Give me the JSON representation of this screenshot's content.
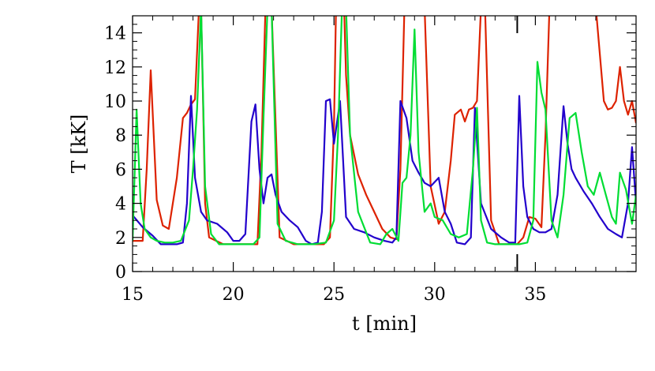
{
  "chart_data": {
    "type": "line",
    "xlabel": "t [min]",
    "ylabel": "T [kK]",
    "xlim": [
      15,
      40
    ],
    "ylim": [
      0,
      15
    ],
    "x_ticks": [
      15,
      20,
      25,
      30,
      35
    ],
    "y_ticks": [
      0,
      2,
      4,
      6,
      8,
      10,
      12,
      14
    ],
    "grid": false,
    "legend": "none",
    "marker_line_x": 34.1,
    "series": [
      {
        "color": "#dd2200",
        "x": [
          15,
          15.5,
          15.7,
          15.9,
          16.2,
          16.5,
          16.8,
          17.2,
          17.5,
          17.7,
          17.9,
          18.1,
          18.3,
          18.4,
          18.5,
          18.6,
          18.8,
          19.5,
          20.5,
          21.2,
          21.4,
          21.6,
          21.9,
          22.3,
          23.0,
          23.8,
          24.5,
          24.8,
          25.0,
          25.1,
          25.3,
          25.5,
          25.6,
          25.8,
          26.2,
          26.6,
          27.0,
          27.4,
          27.8,
          28.1,
          28.3,
          28.5,
          28.7,
          29.0,
          29.3,
          29.5,
          29.8,
          30.2,
          30.5,
          30.8,
          31.0,
          31.3,
          31.5,
          31.7,
          31.9,
          32.1,
          32.3,
          32.5,
          32.8,
          33.2,
          33.7,
          34.1,
          34.4,
          34.7,
          35.0,
          35.3,
          35.5,
          35.7,
          36.5,
          37.0,
          37.5,
          38.0,
          38.4,
          38.6,
          38.8,
          39.0,
          39.2,
          39.4,
          39.6,
          39.8,
          40.0
        ],
        "values": [
          1.8,
          1.8,
          6.0,
          11.8,
          4.2,
          2.7,
          2.5,
          5.5,
          9.0,
          9.3,
          9.8,
          10.1,
          15.5,
          15.5,
          10.0,
          4.0,
          2.0,
          1.6,
          1.6,
          1.6,
          7.0,
          15.5,
          15.5,
          2.0,
          1.6,
          1.6,
          1.6,
          2.0,
          8.5,
          15.5,
          15.5,
          15.5,
          11.5,
          8.0,
          5.7,
          4.5,
          3.5,
          2.5,
          2.0,
          1.9,
          6.0,
          15.5,
          15.5,
          15.5,
          15.5,
          15.5,
          5.0,
          2.8,
          3.5,
          6.5,
          9.2,
          9.5,
          8.8,
          9.5,
          9.6,
          10.0,
          15.5,
          15.5,
          3.0,
          1.6,
          1.6,
          1.6,
          2.0,
          3.2,
          3.1,
          2.6,
          8.0,
          15.5,
          15.5,
          15.5,
          15.5,
          15.5,
          10.0,
          9.5,
          9.6,
          10.0,
          12.0,
          10.0,
          9.2,
          10.0,
          8.7
        ]
      },
      {
        "color": "#2200cc",
        "x": [
          15,
          15.5,
          16.0,
          16.4,
          16.8,
          17.2,
          17.5,
          17.7,
          17.9,
          18.1,
          18.4,
          18.7,
          19.2,
          19.7,
          20.0,
          20.3,
          20.6,
          20.9,
          21.1,
          21.3,
          21.5,
          21.7,
          21.9,
          22.1,
          22.4,
          22.8,
          23.2,
          23.6,
          23.9,
          24.2,
          24.4,
          24.6,
          24.8,
          25.0,
          25.3,
          25.6,
          26.0,
          26.5,
          27.0,
          27.5,
          27.9,
          28.1,
          28.3,
          28.6,
          28.9,
          29.2,
          29.5,
          29.8,
          30.2,
          30.5,
          30.8,
          31.1,
          31.5,
          31.8,
          32.0,
          32.3,
          32.8,
          33.3,
          33.7,
          34.0,
          34.2,
          34.4,
          34.6,
          34.9,
          35.2,
          35.5,
          35.8,
          36.1,
          36.4,
          36.6,
          36.8,
          37.0,
          37.4,
          37.8,
          38.2,
          38.6,
          39.0,
          39.3,
          39.6,
          39.8,
          40.0
        ],
        "values": [
          3.3,
          2.6,
          2.1,
          1.6,
          1.6,
          1.6,
          1.7,
          4.0,
          10.3,
          5.5,
          3.5,
          3.0,
          2.8,
          2.3,
          1.8,
          1.8,
          2.2,
          8.8,
          9.8,
          6.0,
          4.0,
          5.5,
          5.7,
          4.5,
          3.5,
          3.0,
          2.6,
          1.8,
          1.6,
          1.7,
          3.5,
          10.0,
          10.1,
          7.5,
          10.0,
          3.2,
          2.5,
          2.3,
          2.0,
          1.8,
          1.7,
          2.0,
          10.0,
          9.0,
          6.5,
          5.8,
          5.2,
          5.0,
          5.5,
          3.5,
          2.8,
          1.7,
          1.6,
          2.0,
          9.6,
          4.0,
          2.5,
          2.0,
          1.7,
          1.7,
          10.3,
          5.0,
          3.2,
          2.5,
          2.3,
          2.3,
          2.5,
          4.5,
          9.7,
          7.5,
          6.0,
          5.5,
          4.7,
          4.0,
          3.2,
          2.5,
          2.2,
          2.0,
          4.0,
          7.3,
          4.0
        ]
      },
      {
        "color": "#00dd33",
        "x": [
          15,
          15.2,
          15.4,
          15.6,
          15.9,
          16.2,
          16.6,
          17.0,
          17.4,
          17.8,
          18.0,
          18.2,
          18.4,
          18.6,
          18.9,
          19.3,
          20.0,
          21.0,
          21.3,
          21.5,
          21.7,
          21.9,
          22.2,
          22.6,
          23.2,
          24.0,
          24.6,
          25.0,
          25.2,
          25.4,
          25.6,
          25.8,
          26.2,
          26.8,
          27.3,
          27.6,
          27.9,
          28.2,
          28.4,
          28.6,
          28.8,
          29.0,
          29.2,
          29.5,
          29.8,
          30.0,
          30.4,
          30.8,
          31.2,
          31.6,
          31.9,
          32.1,
          32.3,
          32.6,
          33.0,
          33.6,
          34.2,
          34.6,
          34.9,
          35.1,
          35.3,
          35.5,
          35.8,
          36.1,
          36.4,
          36.7,
          37.0,
          37.3,
          37.6,
          37.9,
          38.2,
          38.5,
          38.8,
          39.0,
          39.2,
          39.5,
          39.8,
          40.0
        ],
        "values": [
          1.8,
          9.5,
          4.0,
          2.5,
          2.0,
          1.8,
          1.7,
          1.7,
          1.8,
          3.0,
          6.0,
          9.5,
          15.5,
          5.0,
          2.2,
          1.6,
          1.6,
          1.6,
          2.0,
          9.0,
          15.5,
          15.5,
          2.8,
          1.8,
          1.6,
          1.6,
          1.7,
          3.0,
          8.0,
          15.5,
          15.5,
          8.0,
          3.5,
          1.7,
          1.6,
          2.2,
          2.5,
          1.8,
          5.2,
          5.5,
          8.0,
          14.2,
          7.0,
          3.5,
          4.0,
          3.2,
          3.0,
          2.2,
          2.0,
          2.2,
          6.0,
          9.6,
          3.0,
          1.7,
          1.6,
          1.6,
          1.6,
          1.7,
          3.0,
          12.3,
          10.5,
          9.5,
          3.0,
          2.0,
          4.5,
          9.0,
          9.3,
          7.0,
          5.0,
          4.5,
          5.8,
          4.5,
          3.2,
          2.8,
          5.8,
          4.8,
          2.8,
          4.5
        ]
      }
    ]
  }
}
